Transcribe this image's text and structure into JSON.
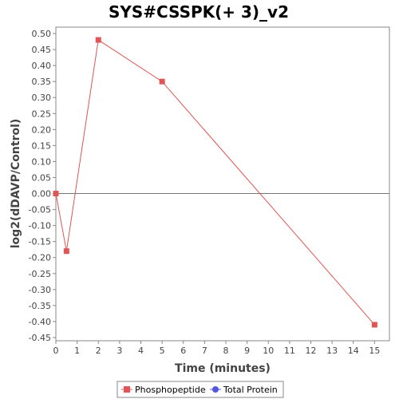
{
  "chart_data": {
    "type": "line",
    "title": "SYS#CSSPK(+ 3)_v2",
    "xlabel": "Time (minutes)",
    "ylabel": "log2(dDAVP/Control)",
    "xlim": [
      0,
      15.7
    ],
    "ylim": [
      -0.46,
      0.52
    ],
    "x_ticks": [
      0,
      1,
      2,
      3,
      4,
      5,
      6,
      7,
      8,
      9,
      10,
      11,
      12,
      13,
      14,
      15
    ],
    "y_ticks": [
      0.5,
      0.45,
      0.4,
      0.35,
      0.3,
      0.25,
      0.2,
      0.15,
      0.1,
      0.05,
      0.0,
      -0.05,
      -0.1,
      -0.15,
      -0.2,
      -0.25,
      -0.3,
      -0.35,
      -0.4,
      -0.45
    ],
    "y_tick_labels": [
      "0.50",
      "0.45",
      "0.40",
      "0.35",
      "0.30",
      "0.25",
      "0.20",
      "0.15",
      "0.10",
      "0.05",
      "0.00",
      "-0.05",
      "-0.10",
      "-0.15",
      "-0.20",
      "-0.25",
      "-0.30",
      "-0.35",
      "-0.40",
      "-0.45"
    ],
    "zero_line": true,
    "grid": false,
    "legend_position": "bottom",
    "series": [
      {
        "name": "Phosphopeptide",
        "color": "#e05555",
        "marker": "square",
        "x": [
          0,
          0.5,
          2,
          5,
          15
        ],
        "y": [
          0.0,
          -0.18,
          0.48,
          0.35,
          -0.41
        ]
      },
      {
        "name": "Total Protein",
        "color": "#5555e0",
        "marker": "circle",
        "x": [],
        "y": []
      }
    ]
  }
}
